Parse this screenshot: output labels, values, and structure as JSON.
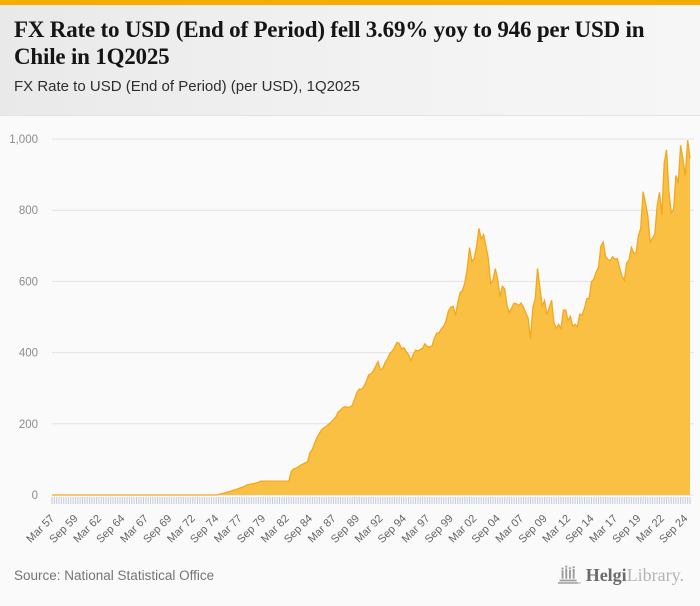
{
  "header": {
    "accent_color": "#F6AC00",
    "title": "FX Rate to USD (End of Period) fell 3.69% yoy to 946 per USD in Chile in 1Q2025",
    "subtitle": "FX Rate to USD (End of Period) (per USD), 1Q2025"
  },
  "chart_data": {
    "type": "area",
    "title": "FX Rate to USD (End of Period) (per USD), 1Q2025",
    "ylabel": "",
    "xlabel": "",
    "ylim": [
      0,
      1000
    ],
    "ytick_labels": [
      "0",
      "200",
      "400",
      "600",
      "800",
      "1,000"
    ],
    "frequency": "quarterly",
    "x_start": "Mar 1957",
    "x_end": "Mar 2025",
    "tick_every": 10,
    "tick_labels": [
      "Mar 57",
      "Sep 59",
      "Mar 62",
      "Sep 64",
      "Mar 67",
      "Sep 69",
      "Mar 72",
      "Sep 74",
      "Mar 77",
      "Sep 79",
      "Mar 82",
      "Sep 84",
      "Mar 87",
      "Sep 89",
      "Mar 92",
      "Sep 94",
      "Mar 97",
      "Sep 99",
      "Mar 02",
      "Sep 04",
      "Mar 07",
      "Sep 09",
      "Mar 12",
      "Sep 14",
      "Mar 17",
      "Sep 19",
      "Mar 22",
      "Sep 24"
    ],
    "grid": true,
    "legend": false,
    "colors": {
      "area": "#FABD3C",
      "line": "#F3A71E",
      "grid": "#E2E2E2",
      "tick": "#BFCBDF",
      "ylabel_text": "#8C8C8C",
      "xlabel_text": "#646464"
    },
    "values": [
      0,
      0,
      0,
      0,
      0,
      0,
      0,
      0,
      0,
      0,
      0,
      0,
      0,
      0,
      0,
      0,
      0,
      0,
      0,
      0,
      0,
      0,
      0,
      0,
      0,
      0,
      0,
      0,
      0,
      0,
      0,
      0,
      0,
      0,
      0,
      0,
      0,
      0,
      0,
      0,
      0,
      0,
      0,
      0,
      0,
      0,
      0,
      0,
      0,
      0,
      0,
      0,
      0,
      0,
      0,
      0,
      0,
      0,
      0,
      0,
      0,
      0,
      0,
      0,
      0,
      0,
      0,
      0,
      0,
      0,
      0,
      1,
      3.6,
      5,
      6.6,
      8.5,
      10.3,
      12.5,
      14.6,
      17,
      19.2,
      21.5,
      24.4,
      28,
      29.6,
      31,
      32.1,
      34,
      35.5,
      39,
      39,
      39,
      39,
      39,
      39,
      39,
      39,
      39,
      39,
      39,
      39,
      39,
      66,
      73.4,
      75.2,
      78.8,
      83.6,
      87.1,
      90.2,
      94.3,
      119.4,
      128.2,
      146.5,
      161.4,
      172.9,
      183.9,
      189.2,
      192.8,
      199,
      204.7,
      211.6,
      219.5,
      232.9,
      238.1,
      245.5,
      248.8,
      245.6,
      247.2,
      251.6,
      268.6,
      288.2,
      297.4,
      296.3,
      305.2,
      318.6,
      337.1,
      340.4,
      349,
      361.7,
      374.5,
      351.7,
      355.3,
      372.2,
      382.1,
      397.1,
      403.8,
      413.6,
      428.5,
      426.2,
      410.4,
      414,
      402.9,
      394.4,
      377.7,
      394.7,
      407.1,
      404.4,
      408.9,
      412.3,
      424.9,
      417,
      415.6,
      419,
      439.8,
      455.1,
      455.3,
      467,
      473.8,
      490,
      516.6,
      527.3,
      530.1,
      504.4,
      539.6,
      569,
      573.9,
      595.8,
      634,
      695,
      656.2,
      664.5,
      697.6,
      749,
      718.6,
      731.6,
      699.4,
      665.3,
      593.8,
      603.9,
      636,
      606.4,
      557.4,
      586.4,
      578.9,
      531.7,
      512.5,
      526.2,
      539,
      537,
      532.4,
      539.4,
      526.9,
      511.2,
      496.9,
      437.7,
      526.1,
      551.3,
      636.5,
      582.1,
      531.8,
      546.1,
      507.1,
      526.3,
      547.2,
      483.7,
      468,
      479.5,
      467,
      519.4,
      519.5,
      489.8,
      501.8,
      473.8,
      479.5,
      472.5,
      507.9,
      504.2,
      524.6,
      551.2,
      552.7,
      598.6,
      606.8,
      626.6,
      639,
      698.7,
      710.2,
      669.8,
      661.4,
      658,
      669.5,
      662.3,
      664.3,
      638.9,
      614.8,
      603.4,
      651.2,
      660.4,
      695.7,
      679.9,
      679.2,
      728.2,
      748.7,
      852,
      821.2,
      785.1,
      711.2,
      721.8,
      733,
      811.9,
      850.2,
      786.8,
      932.1,
      969.2,
      851,
      793.6,
      801.6,
      897.4,
      877.1,
      982.4,
      943.6,
      897.1,
      996.5,
      946
    ]
  },
  "footer": {
    "source": "Source: National Statistical Office",
    "logo_primary": "Helgi",
    "logo_secondary": "Library."
  }
}
